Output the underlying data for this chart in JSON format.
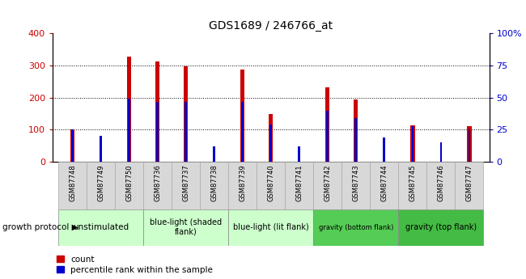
{
  "title": "GDS1689 / 246766_at",
  "samples": [
    "GSM87748",
    "GSM87749",
    "GSM87750",
    "GSM87736",
    "GSM87737",
    "GSM87738",
    "GSM87739",
    "GSM87740",
    "GSM87741",
    "GSM87742",
    "GSM87743",
    "GSM87744",
    "GSM87745",
    "GSM87746",
    "GSM87747"
  ],
  "count_values": [
    100,
    0,
    328,
    313,
    298,
    0,
    287,
    148,
    0,
    233,
    195,
    0,
    113,
    0,
    112
  ],
  "percentile_values": [
    25,
    20,
    49,
    47,
    47,
    12,
    47,
    29,
    12,
    40,
    34,
    19,
    28,
    15,
    25
  ],
  "count_color": "#cc0000",
  "percentile_color": "#0000cc",
  "ylim_left": [
    0,
    400
  ],
  "ylim_right": [
    0,
    100
  ],
  "yticks_left": [
    0,
    100,
    200,
    300,
    400
  ],
  "yticks_right": [
    0,
    25,
    50,
    75,
    100
  ],
  "ytick_labels_right": [
    "0",
    "25",
    "50",
    "75",
    "100%"
  ],
  "grid_values": [
    100,
    200,
    300
  ],
  "groups": [
    {
      "label": "unstimulated",
      "indices": [
        0,
        1,
        2
      ],
      "color": "#ccffcc",
      "fontsize": 7.5
    },
    {
      "label": "blue-light (shaded\nflank)",
      "indices": [
        3,
        4,
        5
      ],
      "color": "#ccffcc",
      "fontsize": 7.0
    },
    {
      "label": "blue-light (lit flank)",
      "indices": [
        6,
        7,
        8
      ],
      "color": "#ccffcc",
      "fontsize": 7.0
    },
    {
      "label": "gravity (bottom flank)",
      "indices": [
        9,
        10,
        11
      ],
      "color": "#55cc55",
      "fontsize": 6.0
    },
    {
      "label": "gravity (top flank)",
      "indices": [
        12,
        13,
        14
      ],
      "color": "#44bb44",
      "fontsize": 7.0
    }
  ],
  "growth_protocol_label": "growth protocol",
  "legend_count": "count",
  "legend_percentile": "percentile rank within the sample",
  "red_bar_width": 0.15,
  "blue_bar_width": 0.08,
  "plot_bg": "#ffffff",
  "xtick_bg": "#d8d8d8",
  "group_row_bg": "#d8d8d8"
}
